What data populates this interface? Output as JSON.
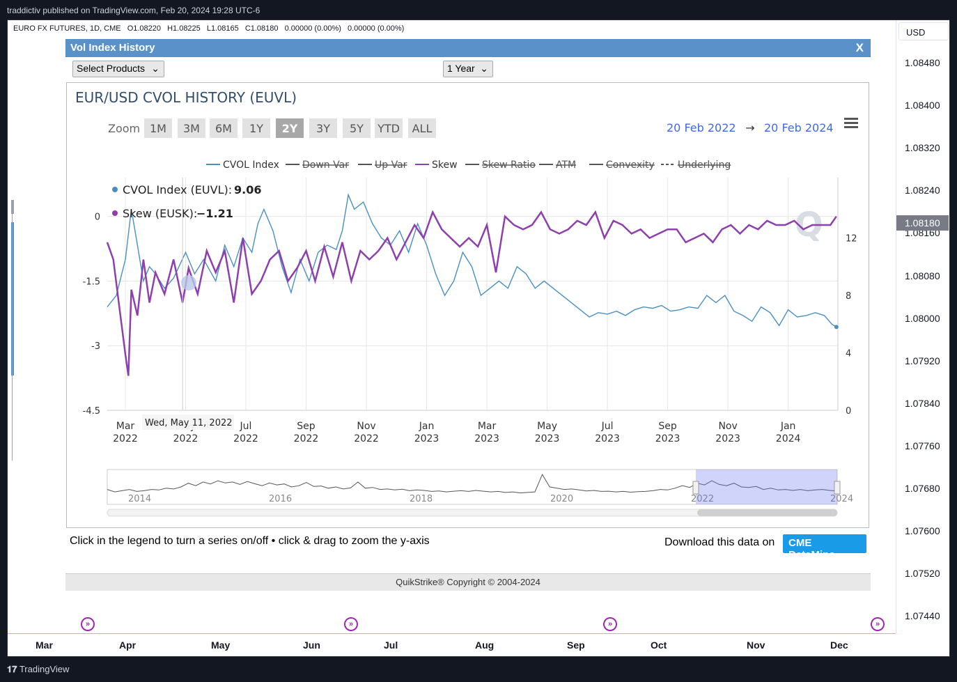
{
  "header": {
    "published": "traddictiv published on TradingView.com, Feb 20, 2024 19:28 UTC-6"
  },
  "symbol": {
    "name": "EURO FX FUTURES, 1D, CME",
    "open": "O1.08220",
    "high": "H1.08225",
    "low": "L1.08165",
    "close": "C1.08180",
    "change1": "0.00000 (0.00%)",
    "change2": "0.00000 (0.00%)"
  },
  "price_axis": {
    "currency": "USD",
    "labels": [
      "1.08480",
      "1.08400",
      "1.08320",
      "1.08240",
      "1.08160",
      "1.08080",
      "1.08000",
      "1.07920",
      "1.07840",
      "1.07760",
      "1.07680",
      "1.07600",
      "1.07520",
      "1.07440"
    ],
    "current": "1.08180"
  },
  "time_axis": {
    "months": [
      "Mar",
      "Apr",
      "May",
      "Jun",
      "Jul",
      "Aug",
      "Sep",
      "Oct",
      "Nov",
      "Dec"
    ]
  },
  "popup": {
    "title": "Vol Index History",
    "close_label": "X",
    "select_products": "Select Products",
    "period": "1 Year",
    "footer_hint": "Click in the legend to turn a series on/off • click & drag to zoom the y-axis",
    "download_label": "Download this data on",
    "cme_button": "CME DataMine",
    "copyright": "QuikStrike® Copyright © 2004-2024"
  },
  "chart_data": {
    "type": "line",
    "title": "EUR/USD CVOL HISTORY (EUVL)",
    "zoom_label": "Zoom",
    "zoom_buttons": [
      "1M",
      "3M",
      "6M",
      "1Y",
      "2Y",
      "3Y",
      "5Y",
      "YTD",
      "ALL"
    ],
    "zoom_selected": "2Y",
    "range_from": "20 Feb 2022",
    "range_arrow": "→",
    "range_to": "20 Feb 2024",
    "legend": [
      {
        "name": "CVOL Index",
        "color": "#4a8fc0",
        "active": true
      },
      {
        "name": "Down Var",
        "color": "#555555",
        "active": false
      },
      {
        "name": "Up Var",
        "color": "#555555",
        "active": false
      },
      {
        "name": "Skew",
        "color": "#8e3fae",
        "active": true
      },
      {
        "name": "Skew Ratio",
        "color": "#555555",
        "active": false
      },
      {
        "name": "ATM",
        "color": "#555555",
        "active": false
      },
      {
        "name": "Convexity",
        "color": "#555555",
        "active": false
      },
      {
        "name": "Underlying",
        "color": "#555555",
        "active": false
      }
    ],
    "tooltip": {
      "date": "Wed, May 11, 2022",
      "cvol_label": "CVOL Index (EUVL): ",
      "cvol_value": "9.06",
      "skew_label": "Skew (EUSK): ",
      "skew_value": "−1.21"
    },
    "y_left": {
      "ticks": [
        "0",
        "-1.5",
        "-3",
        "-4.5"
      ],
      "values": [
        0,
        -1.5,
        -3,
        -4.5
      ],
      "range": [
        -4.5,
        0.9
      ]
    },
    "y_right": {
      "ticks": [
        "12",
        "8",
        "4",
        "0"
      ],
      "values": [
        12,
        8,
        4,
        0
      ],
      "range": [
        0,
        16.2
      ]
    },
    "x_ticks": [
      {
        "m": "Mar",
        "y": "2022",
        "t": 0
      },
      {
        "m": "May",
        "y": "2022",
        "t": 2
      },
      {
        "m": "Jul",
        "y": "2022",
        "t": 4
      },
      {
        "m": "Sep",
        "y": "2022",
        "t": 6
      },
      {
        "m": "Nov",
        "y": "2022",
        "t": 8
      },
      {
        "m": "Jan",
        "y": "2023",
        "t": 10
      },
      {
        "m": "Mar",
        "y": "2023",
        "t": 12
      },
      {
        "m": "May",
        "y": "2023",
        "t": 14
      },
      {
        "m": "Jul",
        "y": "2023",
        "t": 16
      },
      {
        "m": "Sep",
        "y": "2023",
        "t": 18
      },
      {
        "m": "Nov",
        "y": "2023",
        "t": 20
      },
      {
        "m": "Jan",
        "y": "2024",
        "t": 22
      }
    ],
    "x_range": [
      -0.6,
      23.65
    ],
    "series": [
      {
        "name": "CVOL Index",
        "axis": "right",
        "x": [
          -0.6,
          -0.3,
          0,
          0.2,
          0.4,
          0.6,
          0.8,
          1.0,
          1.3,
          1.6,
          2.0,
          2.3,
          2.6,
          3.0,
          3.3,
          3.6,
          3.9,
          4.2,
          4.4,
          4.6,
          4.9,
          5.2,
          5.5,
          5.8,
          6.1,
          6.4,
          6.7,
          7.0,
          7.2,
          7.4,
          7.6,
          7.9,
          8.2,
          8.5,
          8.8,
          9.1,
          9.4,
          9.7,
          10.0,
          10.3,
          10.6,
          10.9,
          11.2,
          11.5,
          11.8,
          12.1,
          12.4,
          12.7,
          13.0,
          13.3,
          13.6,
          13.9,
          14.2,
          14.5,
          14.8,
          15.1,
          15.4,
          15.7,
          16.0,
          16.3,
          16.6,
          16.9,
          17.2,
          17.5,
          17.8,
          18.1,
          18.4,
          18.7,
          19.0,
          19.3,
          19.6,
          19.9,
          20.2,
          20.5,
          20.8,
          21.1,
          21.4,
          21.7,
          22.0,
          22.3,
          22.6,
          22.9,
          23.2,
          23.45,
          23.6
        ],
        "values": [
          7.2,
          8.0,
          10.5,
          14.0,
          11.5,
          9.0,
          10.0,
          9.5,
          8.5,
          9.2,
          11.0,
          9.5,
          10.5,
          9.0,
          11.5,
          10.0,
          12.0,
          11.0,
          13.0,
          14.0,
          12.5,
          10.0,
          8.2,
          10.5,
          9.0,
          11.0,
          11.5,
          11.2,
          12.5,
          15.0,
          14.0,
          14.5,
          13.0,
          12.0,
          11.5,
          12.5,
          11.0,
          13.0,
          11.5,
          9.5,
          8.0,
          9.0,
          11.0,
          10.0,
          8.0,
          8.5,
          9.0,
          8.5,
          10.0,
          9.5,
          8.5,
          9.0,
          8.5,
          8.0,
          7.5,
          7.0,
          6.5,
          6.8,
          6.7,
          6.9,
          6.6,
          7.0,
          7.2,
          7.1,
          7.3,
          6.9,
          7.0,
          7.2,
          7.1,
          8.0,
          7.5,
          8.0,
          6.9,
          6.6,
          6.2,
          7.2,
          6.8,
          5.9,
          7.0,
          6.5,
          6.6,
          6.8,
          6.6,
          6.0,
          5.8
        ]
      },
      {
        "name": "Skew",
        "axis": "left",
        "x": [
          -0.6,
          -0.4,
          -0.2,
          0,
          0.1,
          0.2,
          0.4,
          0.6,
          0.8,
          1.0,
          1.3,
          1.6,
          1.9,
          2.1,
          2.4,
          2.7,
          3.0,
          3.3,
          3.6,
          3.9,
          4.2,
          4.5,
          4.8,
          5.1,
          5.4,
          5.7,
          6.0,
          6.3,
          6.6,
          6.9,
          7.2,
          7.5,
          7.8,
          8.1,
          8.4,
          8.7,
          9.0,
          9.3,
          9.6,
          9.9,
          10.2,
          10.5,
          10.8,
          11.1,
          11.4,
          11.7,
          12.0,
          12.3,
          12.6,
          12.9,
          13.2,
          13.5,
          13.8,
          14.1,
          14.4,
          14.7,
          15.0,
          15.3,
          15.6,
          15.9,
          16.2,
          16.5,
          16.8,
          17.1,
          17.4,
          17.7,
          18.0,
          18.3,
          18.6,
          18.9,
          19.2,
          19.5,
          19.8,
          20.1,
          20.4,
          20.7,
          21.0,
          21.3,
          21.6,
          21.9,
          22.2,
          22.5,
          22.8,
          23.1,
          23.4,
          23.6
        ],
        "values": [
          -0.6,
          -1.0,
          -2.1,
          -3.2,
          -3.7,
          -1.7,
          -2.3,
          -1.0,
          -2.0,
          -1.3,
          -1.8,
          -1.0,
          -2.0,
          -1.2,
          -1.8,
          -0.8,
          -1.3,
          -0.8,
          -2.0,
          -0.5,
          -1.8,
          -1.5,
          -1.0,
          -0.8,
          -1.5,
          -1.2,
          -0.8,
          -1.5,
          -0.7,
          -1.4,
          -0.6,
          -1.5,
          -0.8,
          -1.0,
          -0.8,
          -0.5,
          -1.0,
          -0.6,
          -0.2,
          -0.5,
          0.1,
          -0.3,
          -0.5,
          -0.7,
          -0.5,
          -0.7,
          -0.2,
          -1.3,
          0.0,
          -0.2,
          -0.3,
          -0.2,
          0.1,
          -0.3,
          -0.4,
          -0.3,
          -0.1,
          -0.2,
          0.1,
          -0.5,
          -0.1,
          -0.2,
          -0.4,
          -0.3,
          -0.5,
          -0.4,
          -0.3,
          -0.3,
          -0.6,
          -0.5,
          -0.4,
          -0.6,
          -0.3,
          -0.2,
          -0.4,
          -0.2,
          -0.3,
          -0.1,
          -0.2,
          -0.2,
          -0.1,
          -0.3,
          -0.2,
          -0.2,
          -0.2,
          0.0
        ]
      }
    ],
    "navigator": {
      "labels": [
        "2014",
        "2016",
        "2018",
        "2020",
        "2022",
        "2024"
      ],
      "values": [
        6,
        5,
        5.5,
        6,
        5.2,
        5.5,
        6,
        5.8,
        6.5,
        6.2,
        7,
        8.5,
        7.5,
        9,
        8.2,
        9.5,
        8.6,
        9,
        8,
        9.2,
        8.3,
        7.5,
        8.6,
        7.8,
        8.2,
        7,
        7.5,
        8.8,
        7.2,
        7.4,
        6.5,
        7,
        6.2,
        6.6,
        9,
        6.5,
        6.8,
        6,
        6.2,
        5.8,
        6.1,
        5.5,
        5.8,
        5.6,
        5.2,
        5.4,
        5,
        5.3,
        5.5,
        5.2,
        5.6,
        5.3,
        5,
        5.2,
        4.8,
        5,
        4.6,
        4.8,
        5,
        12,
        7,
        6.5,
        6,
        6.2,
        5.8,
        5.4,
        5.6,
        5.2,
        5.3,
        5,
        5.2,
        4.9,
        5.1,
        5.2,
        5.5,
        6,
        5.8,
        6.5,
        7.5,
        6.8,
        8.5,
        7.8,
        9.5,
        8,
        7.5,
        8.5,
        7,
        6.8,
        7.2,
        6,
        6.5,
        5.8,
        6,
        5.6,
        6,
        5.5,
        5.8,
        6,
        5.6,
        5.4
      ]
    }
  }
}
